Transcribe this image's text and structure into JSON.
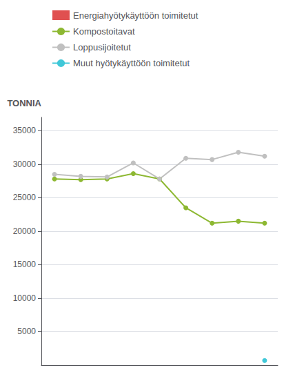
{
  "chart_data": {
    "type": "line",
    "ylabel": "TONNIA",
    "x": [
      0,
      1,
      2,
      3,
      4,
      5,
      6,
      7,
      8
    ],
    "xlim": [
      -0.5,
      8.5
    ],
    "ylim": [
      0,
      37000
    ],
    "yticks": [
      5000,
      10000,
      15000,
      20000,
      25000,
      30000,
      35000
    ],
    "grid": true,
    "legend": "top",
    "tick_labels": "y",
    "series": [
      {
        "name": "Energiahyötykäyttöön toimitetut",
        "color": "#e05050",
        "marker": "square",
        "values": [
          null,
          null,
          null,
          null,
          null,
          null,
          null,
          null,
          null
        ]
      },
      {
        "name": "Kompostoitavat",
        "color": "#8db832",
        "marker": "circle",
        "values": [
          27800,
          27700,
          27800,
          28600,
          27800,
          23500,
          21200,
          21500,
          21200
        ]
      },
      {
        "name": "Loppusijoitetut",
        "color": "#c0c0c0",
        "marker": "circle",
        "values": [
          28500,
          28200,
          28100,
          30200,
          27800,
          30900,
          30700,
          31800,
          31200
        ]
      },
      {
        "name": "Muut hyötykäyttöön toimitetut",
        "color": "#40c8d8",
        "marker": "circle",
        "values": [
          null,
          null,
          null,
          null,
          null,
          null,
          null,
          null,
          700
        ]
      }
    ]
  }
}
